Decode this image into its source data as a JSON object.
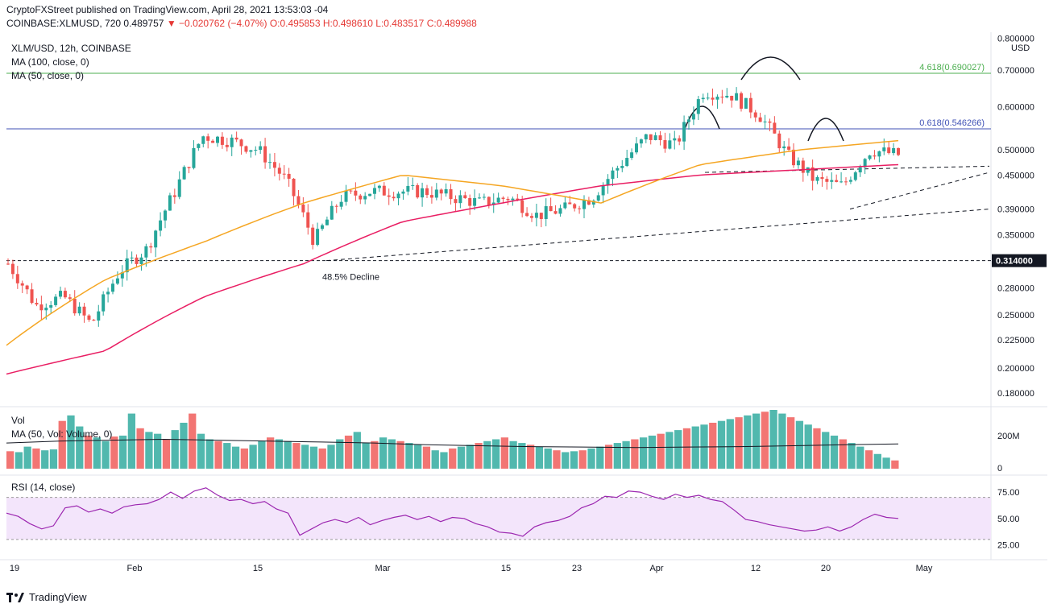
{
  "header": {
    "publisher_line": "CryptoFXStreet published on TradingView.com, April 28, 2021 13:53:03 -04",
    "symbol": "COINBASE:XLMUSD, 720",
    "price": "0.489757",
    "change": "−0.020762 (−4.07%)",
    "open": "O:0.495853",
    "high": "H:0.498610",
    "low": "L:0.483517",
    "close": "C:0.489988"
  },
  "legend": {
    "title": "XLM/USD, 12h, COINBASE",
    "ma100": "MA (100, close, 0)",
    "ma50": "MA (50, close, 0)",
    "vol": "Vol",
    "vol_ma": "MA (50, Vol: Volume, 0)",
    "rsi": "RSI (14, close)"
  },
  "annotations": {
    "fib_4618": "4.618(0.690027)",
    "fib_0618": "0.618(0.546266)",
    "decline": "48.5% Decline",
    "current_level": "0.314000",
    "currency": "USD"
  },
  "brand": "TradingView",
  "colors": {
    "up": "#26a69a",
    "down": "#ef5350",
    "ma50": "#f5a623",
    "ma100": "#e91e63",
    "fib_green": "#4caf50",
    "fib_blue": "#3f51b5",
    "rsi": "#9c27b0"
  },
  "chart_data": [
    {
      "type": "candlestick",
      "title": "XLM/USD, 12h, COINBASE",
      "y_scale": "log",
      "ylim": [
        0.17,
        0.82
      ],
      "price_ticks": [
        0.18,
        0.2,
        0.225,
        0.25,
        0.28,
        0.314,
        0.35,
        0.39,
        0.45,
        0.5,
        0.6,
        0.7,
        0.8
      ],
      "price_tick_labels": [
        "0.180000",
        "0.200000",
        "0.225000",
        "0.250000",
        "0.280000",
        "0.314000",
        "0.350000",
        "0.390000",
        "0.450000",
        "0.500000",
        "0.600000",
        "0.700000",
        "0.800000"
      ],
      "x_ticks": [
        "19",
        "Feb",
        "15",
        "Mar",
        "15",
        "23",
        "Apr",
        "12",
        "20",
        "May"
      ],
      "series": [
        {
          "name": "XLM/USD close",
          "x": [
            "Jan 19",
            "Jan 22",
            "Jan 25",
            "Jan 28",
            "Feb 1",
            "Feb 4",
            "Feb 8",
            "Feb 11",
            "Feb 14",
            "Feb 18",
            "Feb 21",
            "Feb 23",
            "Feb 26",
            "Mar 1",
            "Mar 5",
            "Mar 9",
            "Mar 13",
            "Mar 17",
            "Mar 21",
            "Mar 25",
            "Mar 29",
            "Apr 1",
            "Apr 4",
            "Apr 6",
            "Apr 9",
            "Apr 12",
            "Apr 14",
            "Apr 17",
            "Apr 19",
            "Apr 22",
            "Apr 24",
            "Apr 26",
            "Apr 28"
          ],
          "values": [
            0.31,
            0.26,
            0.27,
            0.24,
            0.3,
            0.33,
            0.42,
            0.53,
            0.52,
            0.5,
            0.44,
            0.34,
            0.41,
            0.42,
            0.42,
            0.42,
            0.41,
            0.4,
            0.41,
            0.38,
            0.39,
            0.41,
            0.47,
            0.53,
            0.51,
            0.64,
            0.63,
            0.58,
            0.49,
            0.44,
            0.43,
            0.5,
            0.49
          ]
        },
        {
          "name": "MA (50, close, 0)",
          "x": [
            "Jan 19",
            "Feb 1",
            "Feb 15",
            "Feb 23",
            "Mar 1",
            "Mar 15",
            "Apr 1",
            "Apr 12",
            "Apr 20",
            "Apr 28"
          ],
          "values": [
            0.22,
            0.29,
            0.34,
            0.4,
            0.45,
            0.43,
            0.4,
            0.47,
            0.5,
            0.52
          ]
        },
        {
          "name": "MA (100, close, 0)",
          "x": [
            "Jan 19",
            "Feb 1",
            "Feb 15",
            "Feb 23",
            "Mar 1",
            "Mar 15",
            "Apr 1",
            "Apr 12",
            "Apr 20",
            "Apr 28"
          ],
          "values": [
            0.195,
            0.215,
            0.27,
            0.31,
            0.37,
            0.4,
            0.43,
            0.45,
            0.46,
            0.47
          ]
        }
      ]
    },
    {
      "type": "bar",
      "title": "Vol",
      "yticks": [
        "200M",
        "0"
      ],
      "series": [
        {
          "name": "Vol",
          "values": [
            95,
            90,
            120,
            110,
            100,
            105,
            260,
            290,
            230,
            180,
            170,
            150,
            175,
            180,
            300,
            220,
            200,
            190,
            160,
            210,
            250,
            300,
            190,
            160,
            150,
            140,
            120,
            110,
            130,
            150,
            170,
            160,
            150,
            140,
            130,
            120,
            110,
            130,
            160,
            180,
            200,
            140,
            150,
            170,
            160,
            150,
            140,
            130,
            120,
            100,
            90,
            110,
            120,
            130,
            140,
            150,
            160,
            170,
            150,
            140,
            130,
            120,
            110,
            100,
            90,
            95,
            100,
            110,
            120,
            130,
            140,
            150,
            160,
            170,
            180,
            190,
            200,
            210,
            220,
            230,
            240,
            250,
            260,
            270,
            280,
            290,
            300,
            310,
            320,
            300,
            280,
            260,
            240,
            220,
            200,
            180,
            160,
            140,
            120,
            100,
            80,
            60,
            45
          ]
        }
      ]
    },
    {
      "type": "line",
      "title": "RSI (14, close)",
      "yticks": [
        "75.00",
        "50.00",
        "25.00"
      ],
      "ylim": [
        20,
        85
      ],
      "series": [
        {
          "name": "RSI",
          "values": [
            55,
            52,
            45,
            40,
            43,
            60,
            62,
            56,
            59,
            55,
            61,
            63,
            64,
            68,
            75,
            69,
            76,
            79,
            72,
            67,
            68,
            64,
            66,
            59,
            55,
            34,
            40,
            46,
            49,
            46,
            51,
            44,
            48,
            51,
            53,
            49,
            52,
            47,
            51,
            50,
            45,
            42,
            37,
            36,
            33,
            42,
            46,
            48,
            52,
            60,
            64,
            71,
            70,
            76,
            75,
            71,
            68,
            73,
            70,
            72,
            68,
            66,
            58,
            49,
            47,
            44,
            42,
            40,
            38,
            39,
            42,
            38,
            42,
            49,
            54,
            51,
            50
          ]
        }
      ]
    }
  ]
}
